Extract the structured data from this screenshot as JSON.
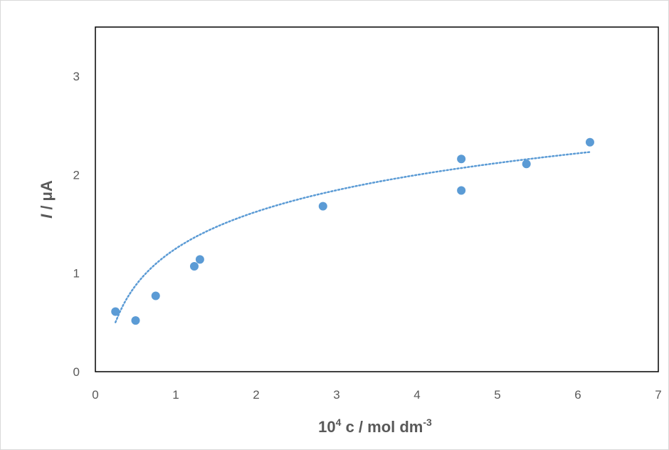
{
  "chart_data": {
    "type": "scatter",
    "title": "",
    "xlabel": {
      "base": "10",
      "exp": "4",
      "rest": " c / mol dm",
      "unit_exp": "-3"
    },
    "ylabel": {
      "var": "I",
      "rest": " / μA"
    },
    "xlim": [
      0,
      7
    ],
    "ylim": [
      0,
      3.5
    ],
    "xticks": [
      "0",
      "1",
      "2",
      "3",
      "4",
      "5",
      "6",
      "7"
    ],
    "yticks": [
      "0",
      "1",
      "2",
      "3"
    ],
    "grid": false,
    "legend": "none",
    "series": [
      {
        "x": [
          0.25,
          0.5,
          0.75,
          1.23,
          1.3,
          2.83,
          4.55,
          4.55,
          5.36,
          6.15
        ],
        "y": [
          0.61,
          0.52,
          0.77,
          1.07,
          1.14,
          1.68,
          2.16,
          1.84,
          2.11,
          2.33
        ],
        "color": "#5b9bd5"
      }
    ],
    "trendline": {
      "type": "logarithmic",
      "style": "dotted",
      "color": "#5b9bd5",
      "x_range": [
        0.25,
        6.15
      ],
      "a": 1.25,
      "b": 0.54
    }
  }
}
